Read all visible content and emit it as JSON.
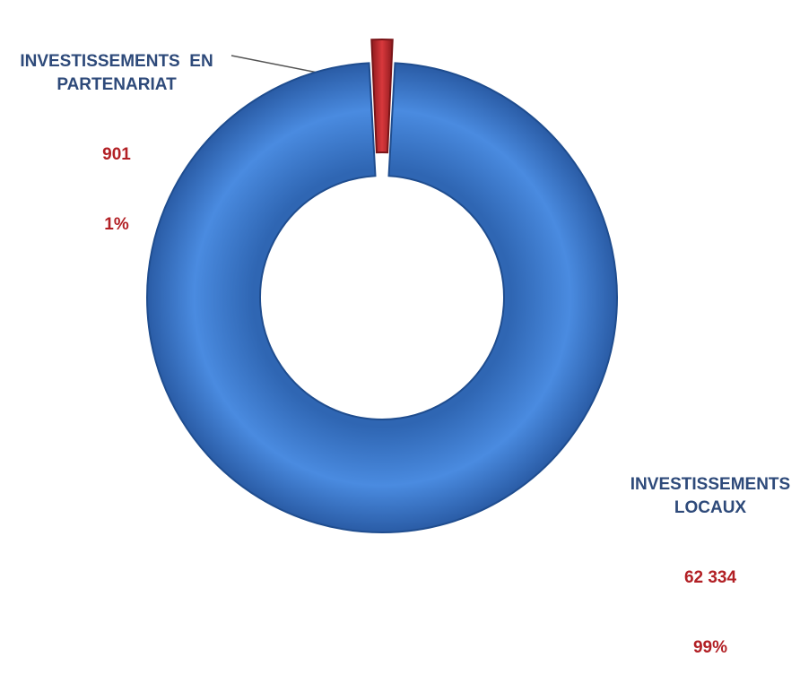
{
  "chart_data": {
    "type": "pie",
    "variant": "donut",
    "title": "",
    "slices": [
      {
        "label": "INVESTISSEMENTS  EN\nPARTENARIAT",
        "value": 901,
        "value_label": "901",
        "percent_label": "1%",
        "color": "#c0272d",
        "exploded": true
      },
      {
        "label": "INVESTISSEMENTS\nLOCAUX",
        "value": 62334,
        "value_label": "62 334",
        "percent_label": "99%",
        "color": "#3f7fd0",
        "exploded": false
      }
    ],
    "label_color": "#2e4a7a",
    "value_color": "#b22025",
    "legend": "none"
  }
}
